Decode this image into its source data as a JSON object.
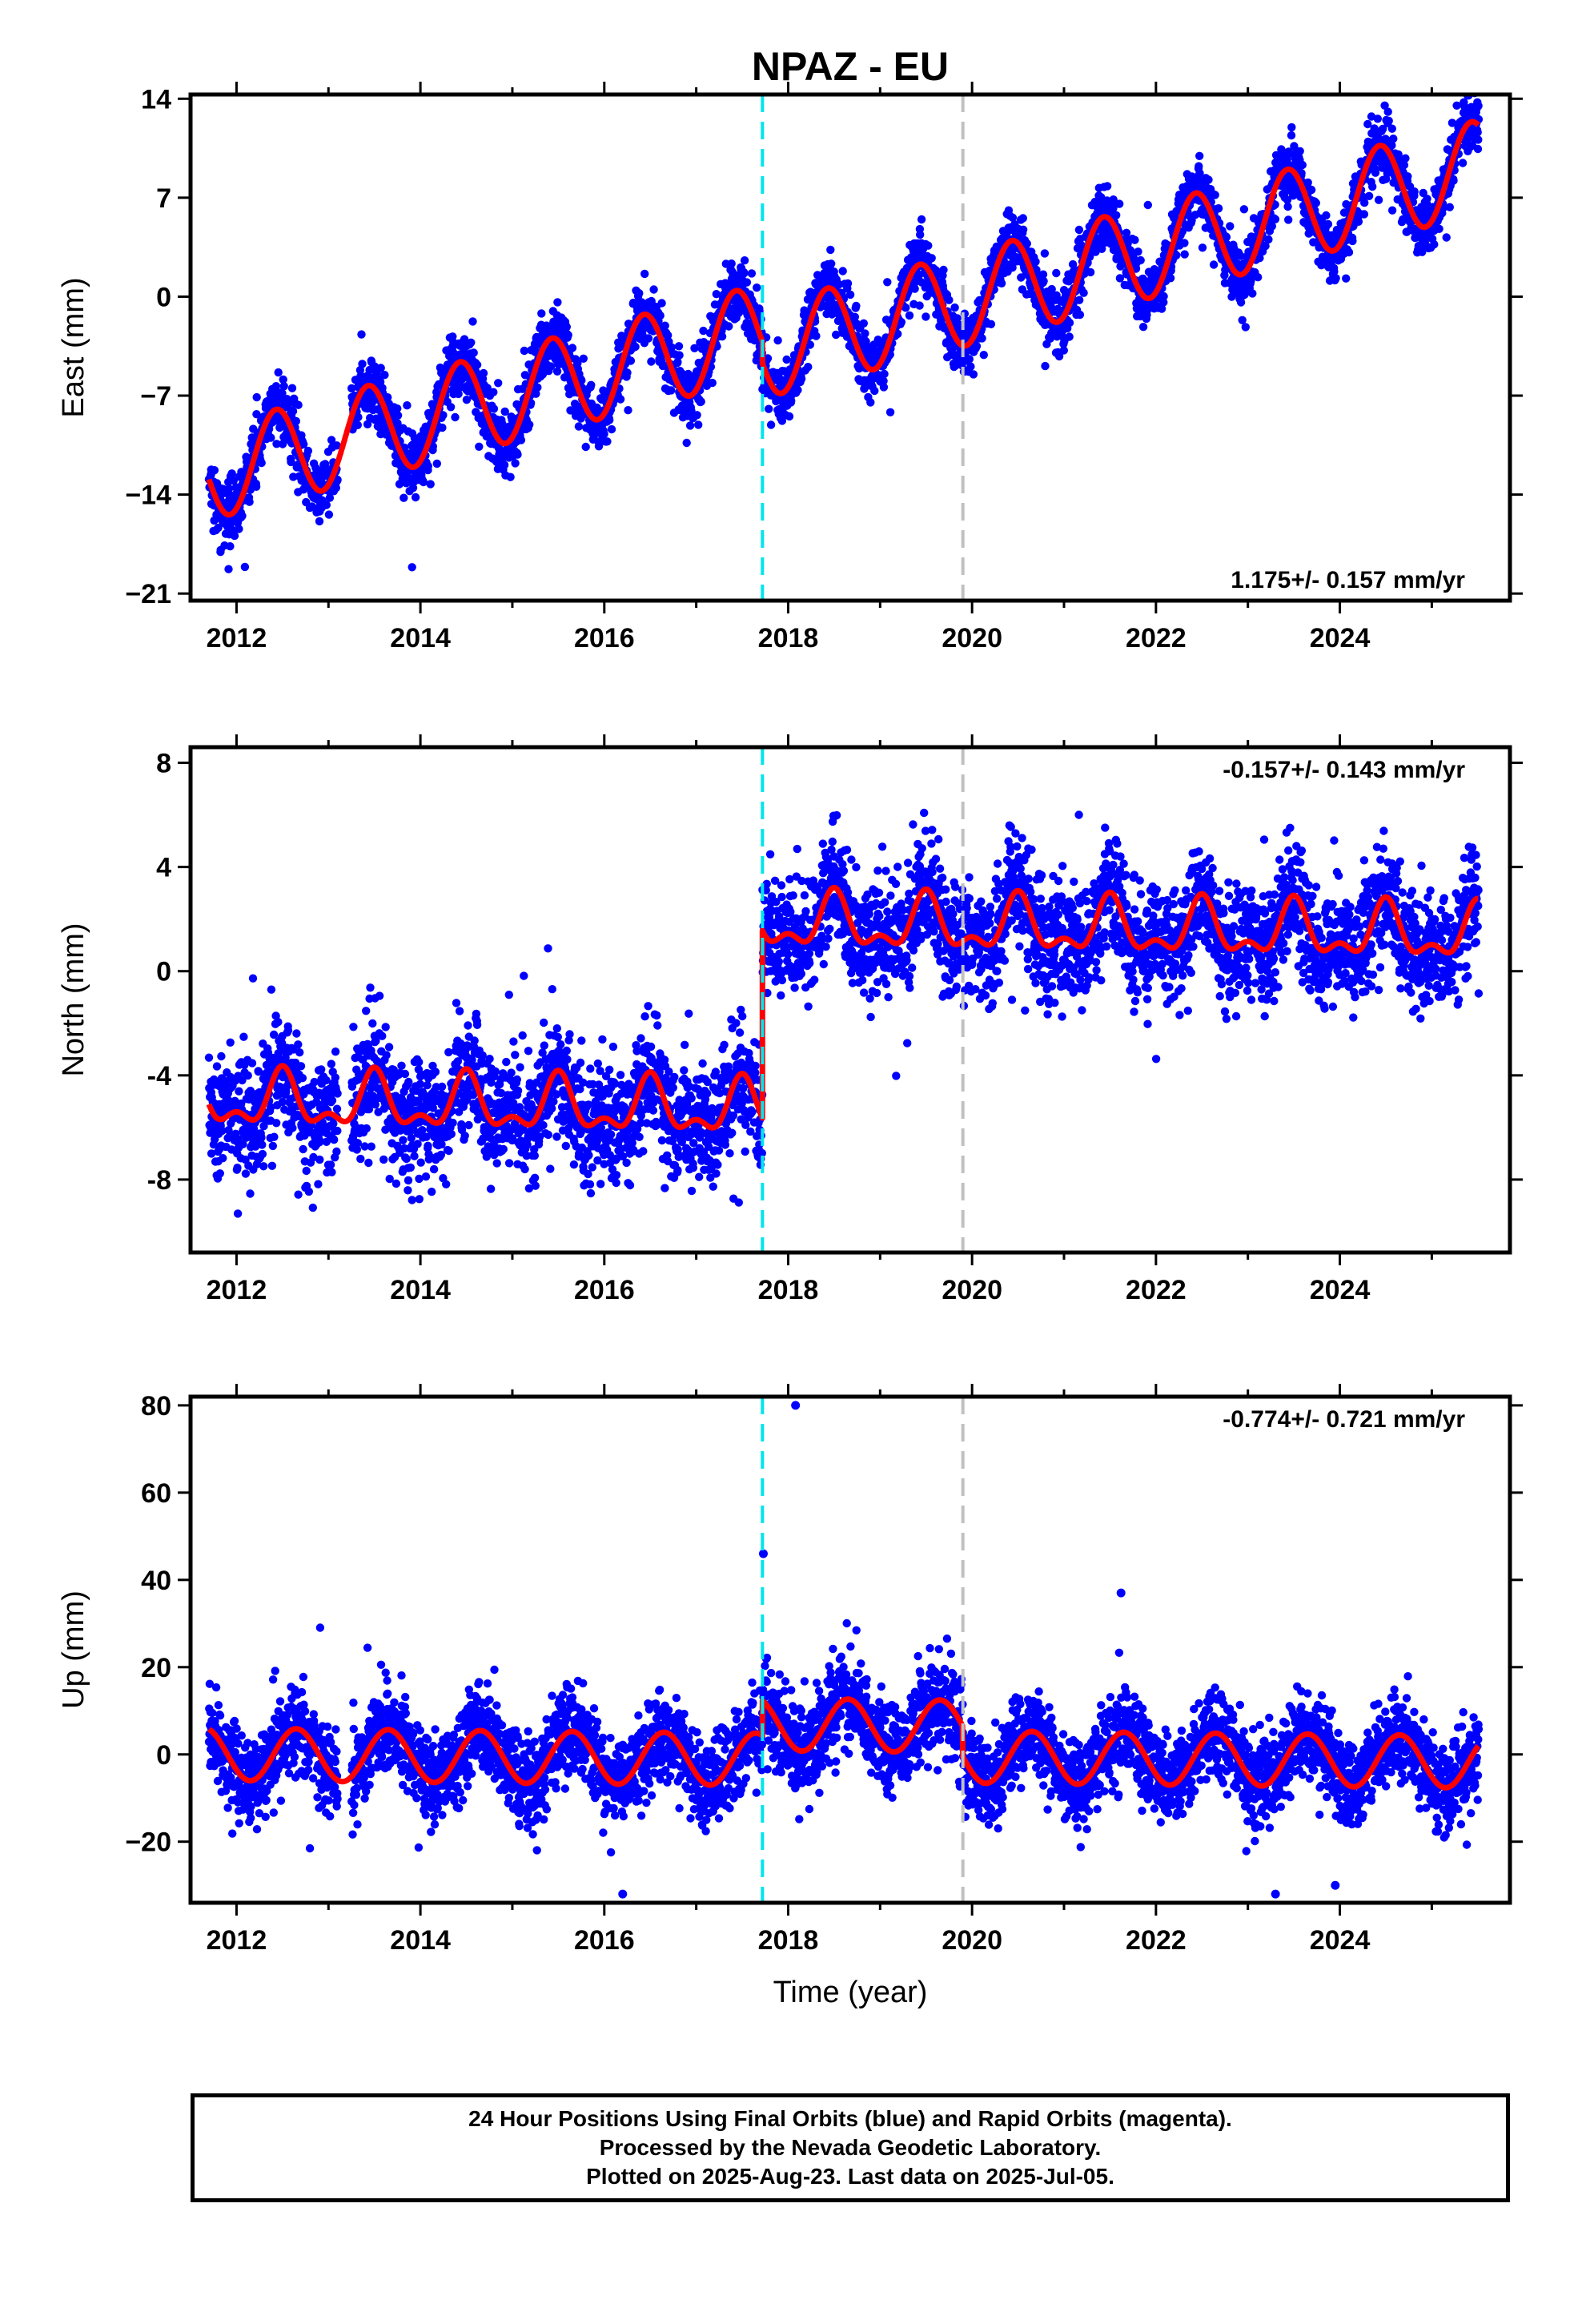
{
  "title": "NPAZ - EU",
  "colors": {
    "points": "#0000ff",
    "model": "#ff0000",
    "equipment_change": "#00e5ee",
    "earthquake": "#c0c0c0",
    "frame": "#000000"
  },
  "footer": {
    "line1": "24 Hour Positions Using Final Orbits (blue) and Rapid Orbits (magenta).",
    "line2": "Processed by the Nevada Geodetic Laboratory.",
    "line3": "Plotted on 2025-Aug-23. Last data on 2025-Jul-05."
  },
  "chart_data": [
    {
      "type": "scatter",
      "ylabel": "East (mm)",
      "xlabel": "",
      "rate_label": "1.175+/- 0.157 mm/yr",
      "xlim": [
        2011.5,
        2025.85
      ],
      "ylim": [
        -21.5,
        14.3
      ],
      "yticks": [
        {
          "value": 14,
          "label": "14"
        },
        {
          "value": 7,
          "label": "7"
        },
        {
          "value": 0,
          "label": "0"
        },
        {
          "value": -7,
          "label": "−7"
        },
        {
          "value": -14,
          "label": "−14"
        },
        {
          "value": -21,
          "label": "−21"
        }
      ],
      "xticks": [
        {
          "value": 2012,
          "label": "2012"
        },
        {
          "value": 2014,
          "label": "2014"
        },
        {
          "value": 2016,
          "label": "2016"
        },
        {
          "value": 2018,
          "label": "2018"
        },
        {
          "value": 2020,
          "label": "2020"
        },
        {
          "value": 2022,
          "label": "2022"
        },
        {
          "value": 2024,
          "label": "2024"
        }
      ],
      "equipment_change_x": 2017.72,
      "earthquake_x": 2019.9,
      "data_start": 2011.7,
      "data_end": 2025.51,
      "gap": [
        2013.1,
        2013.25
      ],
      "model": {
        "base": -12,
        "rate": 1.68,
        "amplitude": 3.3,
        "peak_phase": 0.43,
        "offset_after_step": -1.5
      },
      "scatter_sigma": 1.1
    },
    {
      "type": "scatter",
      "ylabel": "North (mm)",
      "xlabel": "",
      "rate_label": "-0.157+/- 0.143 mm/yr",
      "xlim": [
        2011.5,
        2025.85
      ],
      "ylim": [
        -10.8,
        8.6
      ],
      "yticks": [
        {
          "value": 8,
          "label": "8"
        },
        {
          "value": 4,
          "label": "4"
        },
        {
          "value": 0,
          "label": "0"
        },
        {
          "value": -4,
          "label": "-4"
        },
        {
          "value": -8,
          "label": "-8"
        }
      ],
      "xticks": [
        {
          "value": 2012,
          "label": "2012"
        },
        {
          "value": 2014,
          "label": "2014"
        },
        {
          "value": 2016,
          "label": "2016"
        },
        {
          "value": 2018,
          "label": "2018"
        },
        {
          "value": 2020,
          "label": "2020"
        },
        {
          "value": 2022,
          "label": "2022"
        },
        {
          "value": 2024,
          "label": "2024"
        }
      ],
      "equipment_change_x": 2017.72,
      "earthquake_x": 2019.9,
      "data_start": 2011.7,
      "data_end": 2025.51,
      "gap": [
        2013.1,
        2013.25
      ],
      "model": {
        "base": -5.0,
        "rate": -0.06,
        "amplitude": 0.9,
        "peak_phase": 0.5,
        "semiannual": 0.5,
        "step": 7.2
      },
      "scatter_sigma": 1.1
    },
    {
      "type": "scatter",
      "ylabel": "Up (mm)",
      "xlabel": "Time (year)",
      "rate_label": "-0.774+/- 0.721 mm/yr",
      "xlim": [
        2011.5,
        2025.85
      ],
      "ylim": [
        -34,
        82
      ],
      "yticks": [
        {
          "value": 80,
          "label": "80"
        },
        {
          "value": 60,
          "label": "60"
        },
        {
          "value": 40,
          "label": "40"
        },
        {
          "value": 20,
          "label": "20"
        },
        {
          "value": 0,
          "label": "0"
        },
        {
          "value": -20,
          "label": "−20"
        }
      ],
      "xticks": [
        {
          "value": 2012,
          "label": "2012"
        },
        {
          "value": 2014,
          "label": "2014"
        },
        {
          "value": 2016,
          "label": "2016"
        },
        {
          "value": 2018,
          "label": "2018"
        },
        {
          "value": 2020,
          "label": "2020"
        },
        {
          "value": 2022,
          "label": "2022"
        },
        {
          "value": 2024,
          "label": "2024"
        }
      ],
      "equipment_change_x": 2017.72,
      "earthquake_x": 2019.9,
      "data_start": 2011.7,
      "data_end": 2025.51,
      "gap": [
        2013.1,
        2013.25
      ],
      "model": {
        "base": 0,
        "rate": -0.2,
        "amplitude": 6,
        "peak_phase": 0.65,
        "step": 8,
        "offset_after_eq": -7
      },
      "scatter_sigma": 5,
      "outliers": [
        {
          "x": 2017.73,
          "y": 46
        },
        {
          "x": 2018.08,
          "y": 80
        },
        {
          "x": 2021.62,
          "y": 37
        },
        {
          "x": 2016.2,
          "y": -32
        },
        {
          "x": 2023.3,
          "y": -32
        },
        {
          "x": 2023.95,
          "y": -30
        }
      ]
    }
  ]
}
